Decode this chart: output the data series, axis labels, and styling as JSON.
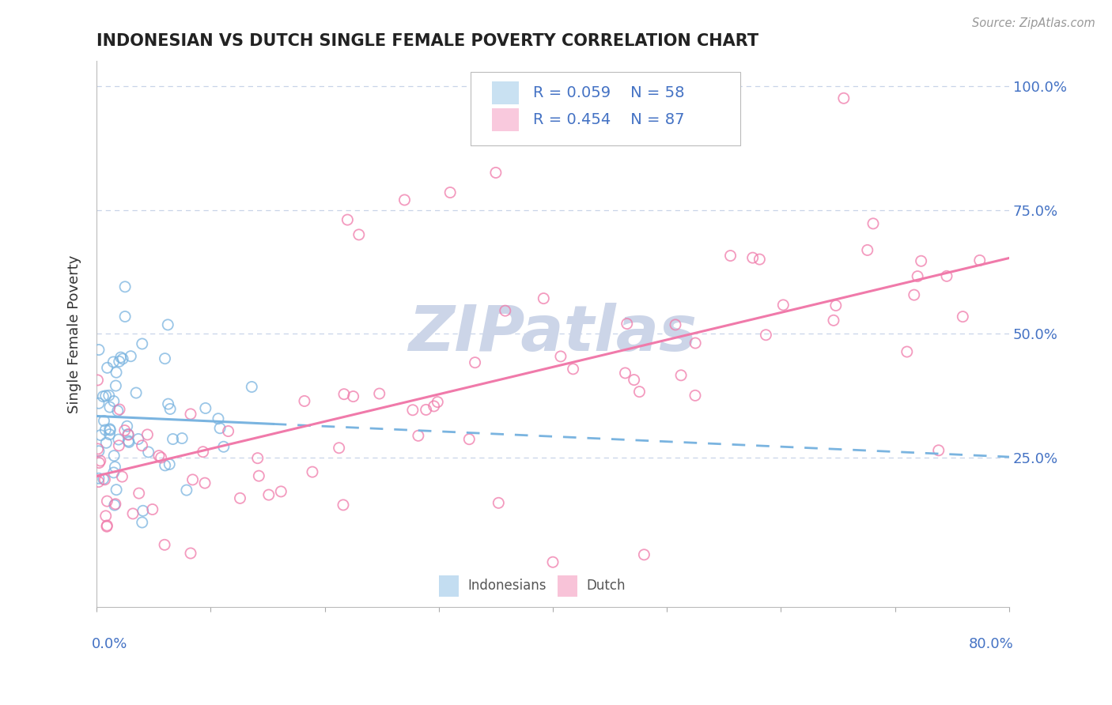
{
  "title": "INDONESIAN VS DUTCH SINGLE FEMALE POVERTY CORRELATION CHART",
  "source_text": "Source: ZipAtlas.com",
  "ylabel": "Single Female Poverty",
  "right_yticklabels": [
    "",
    "25.0%",
    "50.0%",
    "75.0%",
    "100.0%"
  ],
  "xlim": [
    0.0,
    0.8
  ],
  "ylim": [
    -0.05,
    1.05
  ],
  "legend_r1": "R = 0.059",
  "legend_n1": "N = 58",
  "legend_r2": "R = 0.454",
  "legend_n2": "N = 87",
  "indonesian_color": "#7ab4e0",
  "dutch_color": "#f07aaa",
  "watermark_text": "ZIPatlas",
  "watermark_color": "#ccd5e8",
  "axis_label_color": "#4472c4",
  "ylabel_color": "#333333",
  "grid_color": "#c8d4e8",
  "background_color": "#ffffff",
  "legend_text_color": "#4472c4",
  "title_color": "#222222",
  "source_color": "#999999"
}
